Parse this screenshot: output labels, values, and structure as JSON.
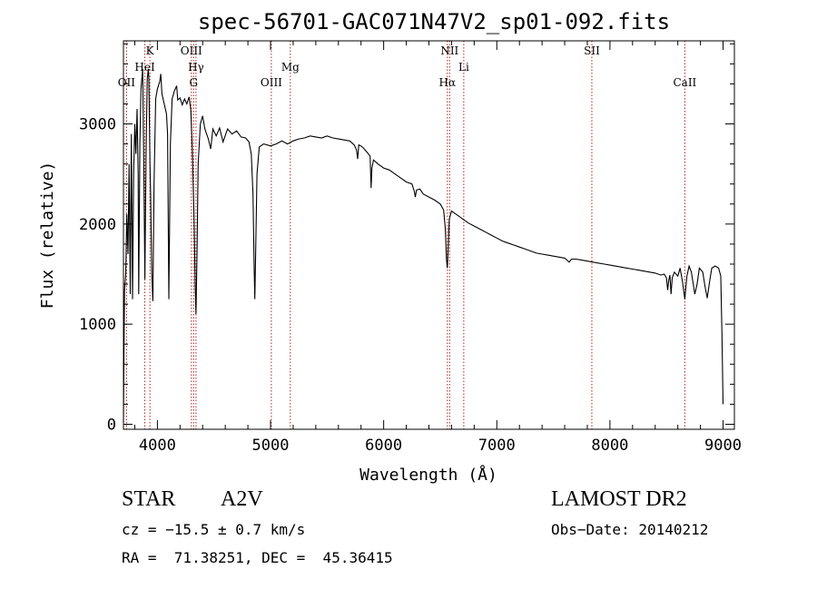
{
  "chart_data": {
    "type": "line",
    "title": "spec-56701-GAC071N47V2_sp01-092.fits",
    "xlabel": "Wavelength (Å)",
    "ylabel": "Flux (relative)",
    "xlim": [
      3700,
      9100
    ],
    "ylim": [
      -50,
      3830
    ],
    "x_ticks": [
      4000,
      5000,
      6000,
      7000,
      8000,
      9000
    ],
    "y_ticks": [
      0,
      1000,
      2000,
      3000
    ],
    "spectral_lines": [
      {
        "name": "OII",
        "wavelength": 3727,
        "row": 3
      },
      {
        "name": "HeI",
        "wavelength": 3889,
        "row": 2
      },
      {
        "name": "K",
        "wavelength": 3934,
        "row": 1
      },
      {
        "name": "OIII",
        "wavelength": 4300,
        "row": 1
      },
      {
        "name": "Hγ",
        "wavelength": 4341,
        "row": 2
      },
      {
        "name": "G",
        "wavelength": 4320,
        "row": 3
      },
      {
        "name": "OIII",
        "wavelength": 5007,
        "row": 3
      },
      {
        "name": "Mg",
        "wavelength": 5175,
        "row": 2
      },
      {
        "name": "NII",
        "wavelength": 6583,
        "row": 1
      },
      {
        "name": "Hα",
        "wavelength": 6563,
        "row": 3
      },
      {
        "name": "Li",
        "wavelength": 6708,
        "row": 2
      },
      {
        "name": "SII",
        "wavelength": 7840,
        "row": 1
      },
      {
        "name": "CaII",
        "wavelength": 8662,
        "row": 3
      }
    ],
    "series": [
      {
        "points": [
          [
            3700,
            20
          ],
          [
            3705,
            800
          ],
          [
            3710,
            1350
          ],
          [
            3720,
            1500
          ],
          [
            3730,
            2100
          ],
          [
            3740,
            1700
          ],
          [
            3750,
            2600
          ],
          [
            3760,
            1300
          ],
          [
            3770,
            2900
          ],
          [
            3780,
            1250
          ],
          [
            3790,
            2500
          ],
          [
            3800,
            3000
          ],
          [
            3810,
            2700
          ],
          [
            3820,
            3150
          ],
          [
            3830,
            2500
          ],
          [
            3835,
            1300
          ],
          [
            3845,
            2800
          ],
          [
            3855,
            3350
          ],
          [
            3870,
            3550
          ],
          [
            3880,
            2600
          ],
          [
            3889,
            1450
          ],
          [
            3900,
            2700
          ],
          [
            3910,
            3450
          ],
          [
            3920,
            3550
          ],
          [
            3925,
            3450
          ],
          [
            3934,
            2600
          ],
          [
            3940,
            2300
          ],
          [
            3950,
            1500
          ],
          [
            3960,
            1230
          ],
          [
            3970,
            2400
          ],
          [
            3985,
            3250
          ],
          [
            4000,
            3350
          ],
          [
            4020,
            3420
          ],
          [
            4030,
            3500
          ],
          [
            4040,
            3300
          ],
          [
            4060,
            3200
          ],
          [
            4080,
            3100
          ],
          [
            4090,
            2900
          ],
          [
            4101,
            1250
          ],
          [
            4115,
            2800
          ],
          [
            4130,
            3250
          ],
          [
            4150,
            3330
          ],
          [
            4170,
            3380
          ],
          [
            4180,
            3240
          ],
          [
            4200,
            3260
          ],
          [
            4220,
            3190
          ],
          [
            4240,
            3250
          ],
          [
            4260,
            3200
          ],
          [
            4280,
            3270
          ],
          [
            4295,
            3140
          ],
          [
            4310,
            2700
          ],
          [
            4325,
            2000
          ],
          [
            4335,
            1350
          ],
          [
            4341,
            1100
          ],
          [
            4350,
            1700
          ],
          [
            4360,
            2600
          ],
          [
            4380,
            3000
          ],
          [
            4400,
            3080
          ],
          [
            4420,
            2950
          ],
          [
            4450,
            2850
          ],
          [
            4471,
            2750
          ],
          [
            4490,
            2950
          ],
          [
            4520,
            2880
          ],
          [
            4550,
            2960
          ],
          [
            4580,
            2820
          ],
          [
            4620,
            2950
          ],
          [
            4660,
            2900
          ],
          [
            4700,
            2930
          ],
          [
            4740,
            2870
          ],
          [
            4780,
            2860
          ],
          [
            4810,
            2820
          ],
          [
            4830,
            2700
          ],
          [
            4845,
            2300
          ],
          [
            4855,
            1600
          ],
          [
            4861,
            1250
          ],
          [
            4868,
            1700
          ],
          [
            4880,
            2500
          ],
          [
            4900,
            2770
          ],
          [
            4940,
            2800
          ],
          [
            5000,
            2780
          ],
          [
            5050,
            2800
          ],
          [
            5100,
            2830
          ],
          [
            5150,
            2800
          ],
          [
            5200,
            2830
          ],
          [
            5250,
            2850
          ],
          [
            5300,
            2860
          ],
          [
            5350,
            2880
          ],
          [
            5400,
            2870
          ],
          [
            5450,
            2860
          ],
          [
            5500,
            2880
          ],
          [
            5550,
            2860
          ],
          [
            5600,
            2850
          ],
          [
            5650,
            2840
          ],
          [
            5700,
            2830
          ],
          [
            5740,
            2790
          ],
          [
            5760,
            2740
          ],
          [
            5770,
            2650
          ],
          [
            5780,
            2790
          ],
          [
            5800,
            2780
          ],
          [
            5820,
            2760
          ],
          [
            5850,
            2720
          ],
          [
            5880,
            2680
          ],
          [
            5889,
            2360
          ],
          [
            5896,
            2560
          ],
          [
            5910,
            2640
          ],
          [
            5950,
            2600
          ],
          [
            6000,
            2560
          ],
          [
            6050,
            2540
          ],
          [
            6100,
            2500
          ],
          [
            6150,
            2460
          ],
          [
            6200,
            2420
          ],
          [
            6250,
            2400
          ],
          [
            6270,
            2330
          ],
          [
            6280,
            2270
          ],
          [
            6290,
            2340
          ],
          [
            6320,
            2350
          ],
          [
            6350,
            2300
          ],
          [
            6400,
            2270
          ],
          [
            6450,
            2240
          ],
          [
            6500,
            2200
          ],
          [
            6530,
            2140
          ],
          [
            6545,
            1950
          ],
          [
            6555,
            1650
          ],
          [
            6563,
            1560
          ],
          [
            6570,
            1750
          ],
          [
            6580,
            2050
          ],
          [
            6600,
            2130
          ],
          [
            6650,
            2090
          ],
          [
            6700,
            2050
          ],
          [
            6750,
            2010
          ],
          [
            6800,
            1980
          ],
          [
            6850,
            1950
          ],
          [
            6900,
            1920
          ],
          [
            6950,
            1890
          ],
          [
            7000,
            1860
          ],
          [
            7050,
            1830
          ],
          [
            7100,
            1810
          ],
          [
            7150,
            1790
          ],
          [
            7200,
            1770
          ],
          [
            7250,
            1750
          ],
          [
            7300,
            1730
          ],
          [
            7350,
            1710
          ],
          [
            7400,
            1700
          ],
          [
            7450,
            1690
          ],
          [
            7500,
            1680
          ],
          [
            7550,
            1670
          ],
          [
            7600,
            1660
          ],
          [
            7640,
            1620
          ],
          [
            7660,
            1650
          ],
          [
            7700,
            1650
          ],
          [
            7750,
            1640
          ],
          [
            7800,
            1630
          ],
          [
            7850,
            1620
          ],
          [
            7900,
            1610
          ],
          [
            7950,
            1600
          ],
          [
            8000,
            1590
          ],
          [
            8050,
            1580
          ],
          [
            8100,
            1570
          ],
          [
            8150,
            1560
          ],
          [
            8200,
            1550
          ],
          [
            8250,
            1540
          ],
          [
            8300,
            1530
          ],
          [
            8350,
            1520
          ],
          [
            8400,
            1510
          ],
          [
            8450,
            1490
          ],
          [
            8480,
            1500
          ],
          [
            8500,
            1460
          ],
          [
            8510,
            1340
          ],
          [
            8520,
            1440
          ],
          [
            8530,
            1490
          ],
          [
            8540,
            1300
          ],
          [
            8550,
            1460
          ],
          [
            8570,
            1520
          ],
          [
            8600,
            1480
          ],
          [
            8620,
            1560
          ],
          [
            8640,
            1430
          ],
          [
            8662,
            1250
          ],
          [
            8680,
            1480
          ],
          [
            8700,
            1580
          ],
          [
            8720,
            1520
          ],
          [
            8750,
            1300
          ],
          [
            8770,
            1400
          ],
          [
            8790,
            1560
          ],
          [
            8820,
            1520
          ],
          [
            8840,
            1380
          ],
          [
            8860,
            1260
          ],
          [
            8880,
            1420
          ],
          [
            8900,
            1560
          ],
          [
            8930,
            1580
          ],
          [
            8960,
            1560
          ],
          [
            8980,
            1480
          ],
          [
            8990,
            900
          ],
          [
            9000,
            200
          ]
        ]
      }
    ]
  },
  "footer": {
    "object_type": "STAR",
    "subclass": "A2V",
    "survey": "LAMOST DR2",
    "redshift": "cz = −15.5 ± 0.7 km/s",
    "obs_date": "Obs−Date: 20140212",
    "coords": "RA =  71.38251, DEC =  45.36415"
  },
  "colors": {
    "line": "#000000",
    "marker_lines": "#b22222",
    "background": "#ffffff"
  }
}
